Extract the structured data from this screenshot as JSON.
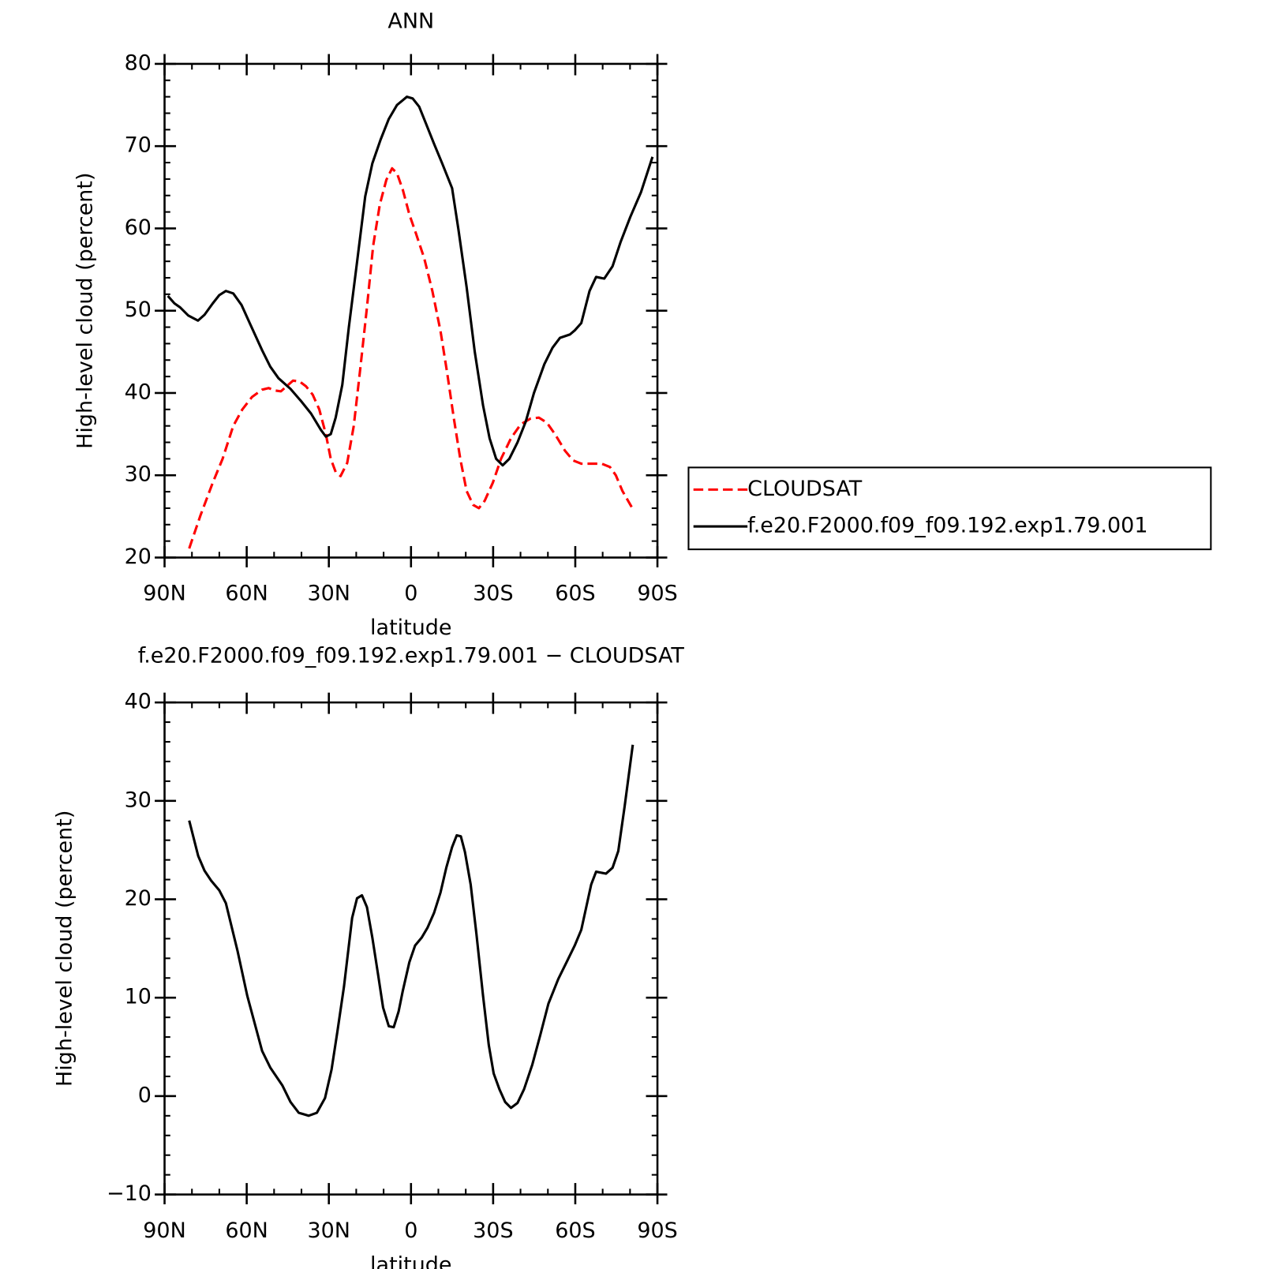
{
  "chart_data": [
    {
      "type": "line",
      "title": "ANN",
      "xlabel": "latitude",
      "ylabel": "High-level cloud (percent)",
      "xlim": [
        90,
        -90
      ],
      "xticks": [
        {
          "value": 90,
          "label": "90N"
        },
        {
          "value": 60,
          "label": "60N"
        },
        {
          "value": 30,
          "label": "30N"
        },
        0,
        {
          "value": -30,
          "label": "30S"
        },
        {
          "value": -60,
          "label": "60S"
        },
        {
          "value": -90,
          "label": "90S"
        }
      ],
      "ylim": [
        20,
        80
      ],
      "yticks": [
        20,
        30,
        40,
        50,
        60,
        70,
        80
      ],
      "legend": "right",
      "series": [
        {
          "name": "CLOUDSAT",
          "color": "#ff0000",
          "dashed": true,
          "x": [
            81,
            76.9,
            72.4,
            68.8,
            64.9,
            61.6,
            58.1,
            54.4,
            52,
            49.6,
            47.5,
            45.5,
            43.1,
            40.7,
            38.3,
            35.9,
            33.5,
            31.1,
            29.3,
            27.5,
            25.7,
            23.3,
            20.9,
            18.5,
            16.1,
            13.8,
            11.4,
            9.0,
            6.9,
            5.1,
            3.0,
            0.6,
            -1.8,
            -4.8,
            -7.8,
            -10.8,
            -13.2,
            -15.6,
            -18,
            -20.3,
            -22.7,
            -24.8,
            -26.9,
            -29.9,
            -32.9,
            -36.5,
            -40.1,
            -43.7,
            -46.7,
            -49.6,
            -52.6,
            -56.2,
            -59.2,
            -62.2,
            -65.8,
            -69.7,
            -72.7,
            -74.8,
            -77.2,
            -81
          ],
          "values": [
            21.1,
            25.1,
            29.1,
            32.0,
            36.0,
            38.0,
            39.5,
            40.4,
            40.6,
            40.3,
            40.2,
            40.8,
            41.5,
            41.4,
            40.8,
            39.8,
            38.0,
            35.0,
            32.0,
            30.4,
            29.9,
            31.5,
            36.0,
            43.0,
            50.4,
            57.9,
            62.9,
            65.9,
            67.3,
            66.7,
            64.7,
            61.7,
            59.4,
            56.4,
            52.4,
            47.5,
            42.5,
            37.0,
            32.0,
            28.1,
            26.4,
            26.0,
            26.9,
            29.1,
            32.0,
            34.5,
            36.2,
            36.9,
            37.0,
            36.4,
            35.0,
            33.0,
            31.8,
            31.4,
            31.4,
            31.4,
            31.0,
            30.0,
            28.1,
            25.9
          ]
        },
        {
          "name": "f.e20.F2000.f09_f09.192.exp1.79.001",
          "color": "#000000",
          "dashed": false,
          "x": [
            88.8,
            86.4,
            84.3,
            81.3,
            77.8,
            75.4,
            72.4,
            70,
            67.6,
            64.9,
            61.9,
            58.9,
            54.4,
            51.4,
            48.4,
            44,
            40.1,
            36.5,
            32.9,
            31.1,
            29.3,
            27.5,
            25.1,
            22.7,
            19.7,
            16.7,
            14.1,
            11.1,
            8.1,
            5.1,
            1.5,
            -0.6,
            -3.0,
            -5.4,
            -8.4,
            -11.4,
            -15,
            -17.3,
            -20.3,
            -23.3,
            -26.3,
            -28.7,
            -31.1,
            -33.5,
            -35.9,
            -38.9,
            -41.9,
            -44.9,
            -48.7,
            -51.7,
            -54.4,
            -58,
            -59.8,
            -62.2,
            -65.2,
            -67.6,
            -70.6,
            -73.6,
            -76.6,
            -80.1,
            -84,
            -88.2
          ],
          "values": [
            51.8,
            50.9,
            50.4,
            49.4,
            48.8,
            49.5,
            50.9,
            51.9,
            52.4,
            52.1,
            50.7,
            48.5,
            45.2,
            43.2,
            41.8,
            40.5,
            39.0,
            37.5,
            35.5,
            34.7,
            35.0,
            37.0,
            41.0,
            48.0,
            55.9,
            63.9,
            67.9,
            70.8,
            73.3,
            75.0,
            76.0,
            75.8,
            74.8,
            72.8,
            70.3,
            67.9,
            64.9,
            59.9,
            52.9,
            45.0,
            38.5,
            34.5,
            32.0,
            31.2,
            32.0,
            34.0,
            36.5,
            40.0,
            43.5,
            45.5,
            46.7,
            47.1,
            47.6,
            48.5,
            52.4,
            54.1,
            53.9,
            55.4,
            58.4,
            61.4,
            64.4,
            68.7
          ]
        }
      ]
    },
    {
      "type": "line",
      "title": "f.e20.F2000.f09_f09.192.exp1.79.001 − CLOUDSAT",
      "xlabel": "latitude",
      "ylabel": "High-level cloud (percent)",
      "xlim": [
        90,
        -90
      ],
      "xticks": [
        {
          "value": 90,
          "label": "90N"
        },
        {
          "value": 60,
          "label": "60N"
        },
        {
          "value": 30,
          "label": "30N"
        },
        0,
        {
          "value": -30,
          "label": "30S"
        },
        {
          "value": -60,
          "label": "60S"
        },
        {
          "value": -90,
          "label": "90S"
        }
      ],
      "ylim": [
        -10,
        40
      ],
      "yticks": [
        {
          "value": -10,
          "label": "−10"
        },
        0,
        10,
        20,
        30,
        40
      ],
      "series": [
        {
          "color": "#000000",
          "dashed": false,
          "x": [
            81,
            77.7,
            75.4,
            73,
            70,
            67.6,
            63.4,
            59.8,
            54.4,
            51.4,
            47,
            44,
            41,
            37.4,
            34.4,
            31.4,
            29,
            26.9,
            24.5,
            21.5,
            19.7,
            17.9,
            16.1,
            14.1,
            12,
            10.2,
            8.1,
            6.3,
            4.5,
            3,
            0.6,
            -1.5,
            -3.9,
            -6,
            -8.4,
            -10.8,
            -12.9,
            -15,
            -16.7,
            -18.2,
            -19.7,
            -21.8,
            -23.9,
            -26.3,
            -28.4,
            -30.2,
            -32.3,
            -34.4,
            -36.5,
            -38.9,
            -41.3,
            -44.3,
            -47.2,
            -50.2,
            -53.8,
            -56.8,
            -59.8,
            -62.2,
            -65.8,
            -67.6,
            -71.2,
            -73.6,
            -75.7,
            -78,
            -81
          ],
          "values": [
            28.0,
            24.4,
            22.9,
            21.9,
            20.9,
            19.6,
            14.8,
            10.2,
            4.6,
            2.9,
            1.1,
            -0.6,
            -1.7,
            -2.0,
            -1.7,
            -0.2,
            2.7,
            6.5,
            11.1,
            18.1,
            20.1,
            20.4,
            19.2,
            16.1,
            12.3,
            9.0,
            7.1,
            7.0,
            8.6,
            10.7,
            13.6,
            15.3,
            16.1,
            17.1,
            18.6,
            20.7,
            23.2,
            25.3,
            26.5,
            26.4,
            24.8,
            21.5,
            16.5,
            10.2,
            5.2,
            2.3,
            0.7,
            -0.6,
            -1.2,
            -0.7,
            0.7,
            3.2,
            6.2,
            9.4,
            11.9,
            13.6,
            15.3,
            16.9,
            21.5,
            22.8,
            22.6,
            23.2,
            24.9,
            29.4,
            35.7
          ]
        }
      ]
    }
  ]
}
